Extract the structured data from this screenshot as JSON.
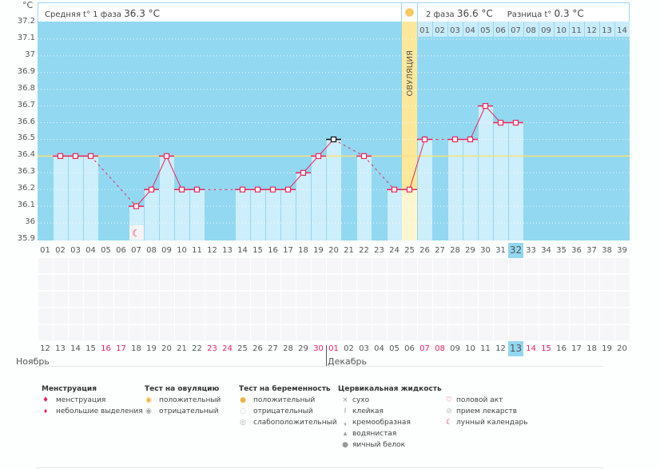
{
  "unit": "°C",
  "header": {
    "phase1_label": "Средняя t° 1 фаза",
    "phase1_value": "36.3 °C",
    "phase2_label": "2 фаза",
    "phase2_value": "36.6 °C",
    "diff_label": "Разница t°",
    "diff_value": "0.3 °C"
  },
  "ovulation_label": "ОВУЛЯЦИЯ",
  "ovulation_day": 25,
  "cycle_day_highlight": 32,
  "phase2_days": [
    "01",
    "02",
    "03",
    "04",
    "05",
    "06",
    "07",
    "08",
    "09",
    "10",
    "11",
    "12",
    "13",
    "14"
  ],
  "months": [
    "Ноябрь",
    "Декабрь"
  ],
  "dates": [
    "12",
    "13",
    "14",
    "15",
    "16",
    "17",
    "18",
    "19",
    "20",
    "21",
    "22",
    "23",
    "24",
    "25",
    "26",
    "27",
    "28",
    "29",
    "30",
    "01",
    "02",
    "03",
    "04",
    "05",
    "06",
    "07",
    "08",
    "09",
    "10",
    "11",
    "12",
    "13",
    "14",
    "15",
    "16",
    "17",
    "18",
    "19",
    "20"
  ],
  "red_date_indices": [
    4,
    5,
    11,
    12,
    18,
    19,
    25,
    26,
    32,
    33
  ],
  "chart_data": {
    "type": "line",
    "ylim": [
      35.9,
      37.2
    ],
    "yticks": [
      "35.9",
      "36",
      "36.1",
      "36.2",
      "36.3",
      "36.4",
      "36.5",
      "36.6",
      "36.7",
      "36.8",
      "36.9",
      "37",
      "37.1",
      "37.2"
    ],
    "x": [
      "01",
      "02",
      "03",
      "04",
      "05",
      "06",
      "07",
      "08",
      "09",
      "10",
      "11",
      "12",
      "13",
      "14",
      "15",
      "16",
      "17",
      "18",
      "19",
      "20",
      "21",
      "22",
      "23",
      "24",
      "25",
      "26",
      "27",
      "28",
      "29",
      "30",
      "31",
      "32",
      "33",
      "34",
      "35",
      "36",
      "37",
      "38",
      "39"
    ],
    "values": [
      null,
      36.4,
      36.4,
      36.4,
      null,
      null,
      36.1,
      36.2,
      36.4,
      36.2,
      36.2,
      null,
      null,
      36.2,
      36.2,
      36.2,
      36.2,
      36.3,
      36.4,
      36.5,
      null,
      36.4,
      null,
      36.2,
      36.2,
      36.5,
      null,
      36.5,
      36.5,
      36.7,
      36.6,
      36.6,
      null,
      null,
      null,
      null,
      null,
      null,
      null
    ],
    "excluded_day": 20,
    "coverline": 36.4,
    "moon_day": 7
  },
  "legend": {
    "menstruation": {
      "title": "Менструация",
      "items": [
        "менструация",
        "небольшие выделения"
      ]
    },
    "ovulation_test": {
      "title": "Тест на овуляцию",
      "items": [
        "положительный",
        "отрицательный"
      ]
    },
    "pregnancy_test": {
      "title": "Тест на беременность",
      "items": [
        "положительный",
        "отрицательный",
        "слабоположительный"
      ]
    },
    "cervical": {
      "title": "Цервикальная жидкость",
      "items": [
        "сухо",
        "клейкая",
        "кремообразная",
        "водянистая",
        "яичный белок"
      ]
    },
    "other": {
      "items": [
        "половой акт",
        "прием лекарств",
        "лунный календарь"
      ]
    }
  },
  "colors": {
    "plot": "#92d8f1",
    "bar": "#cdeefb",
    "line": "#f0245a",
    "coverline": "#f5e27a",
    "ovulation": "#fde89a"
  }
}
